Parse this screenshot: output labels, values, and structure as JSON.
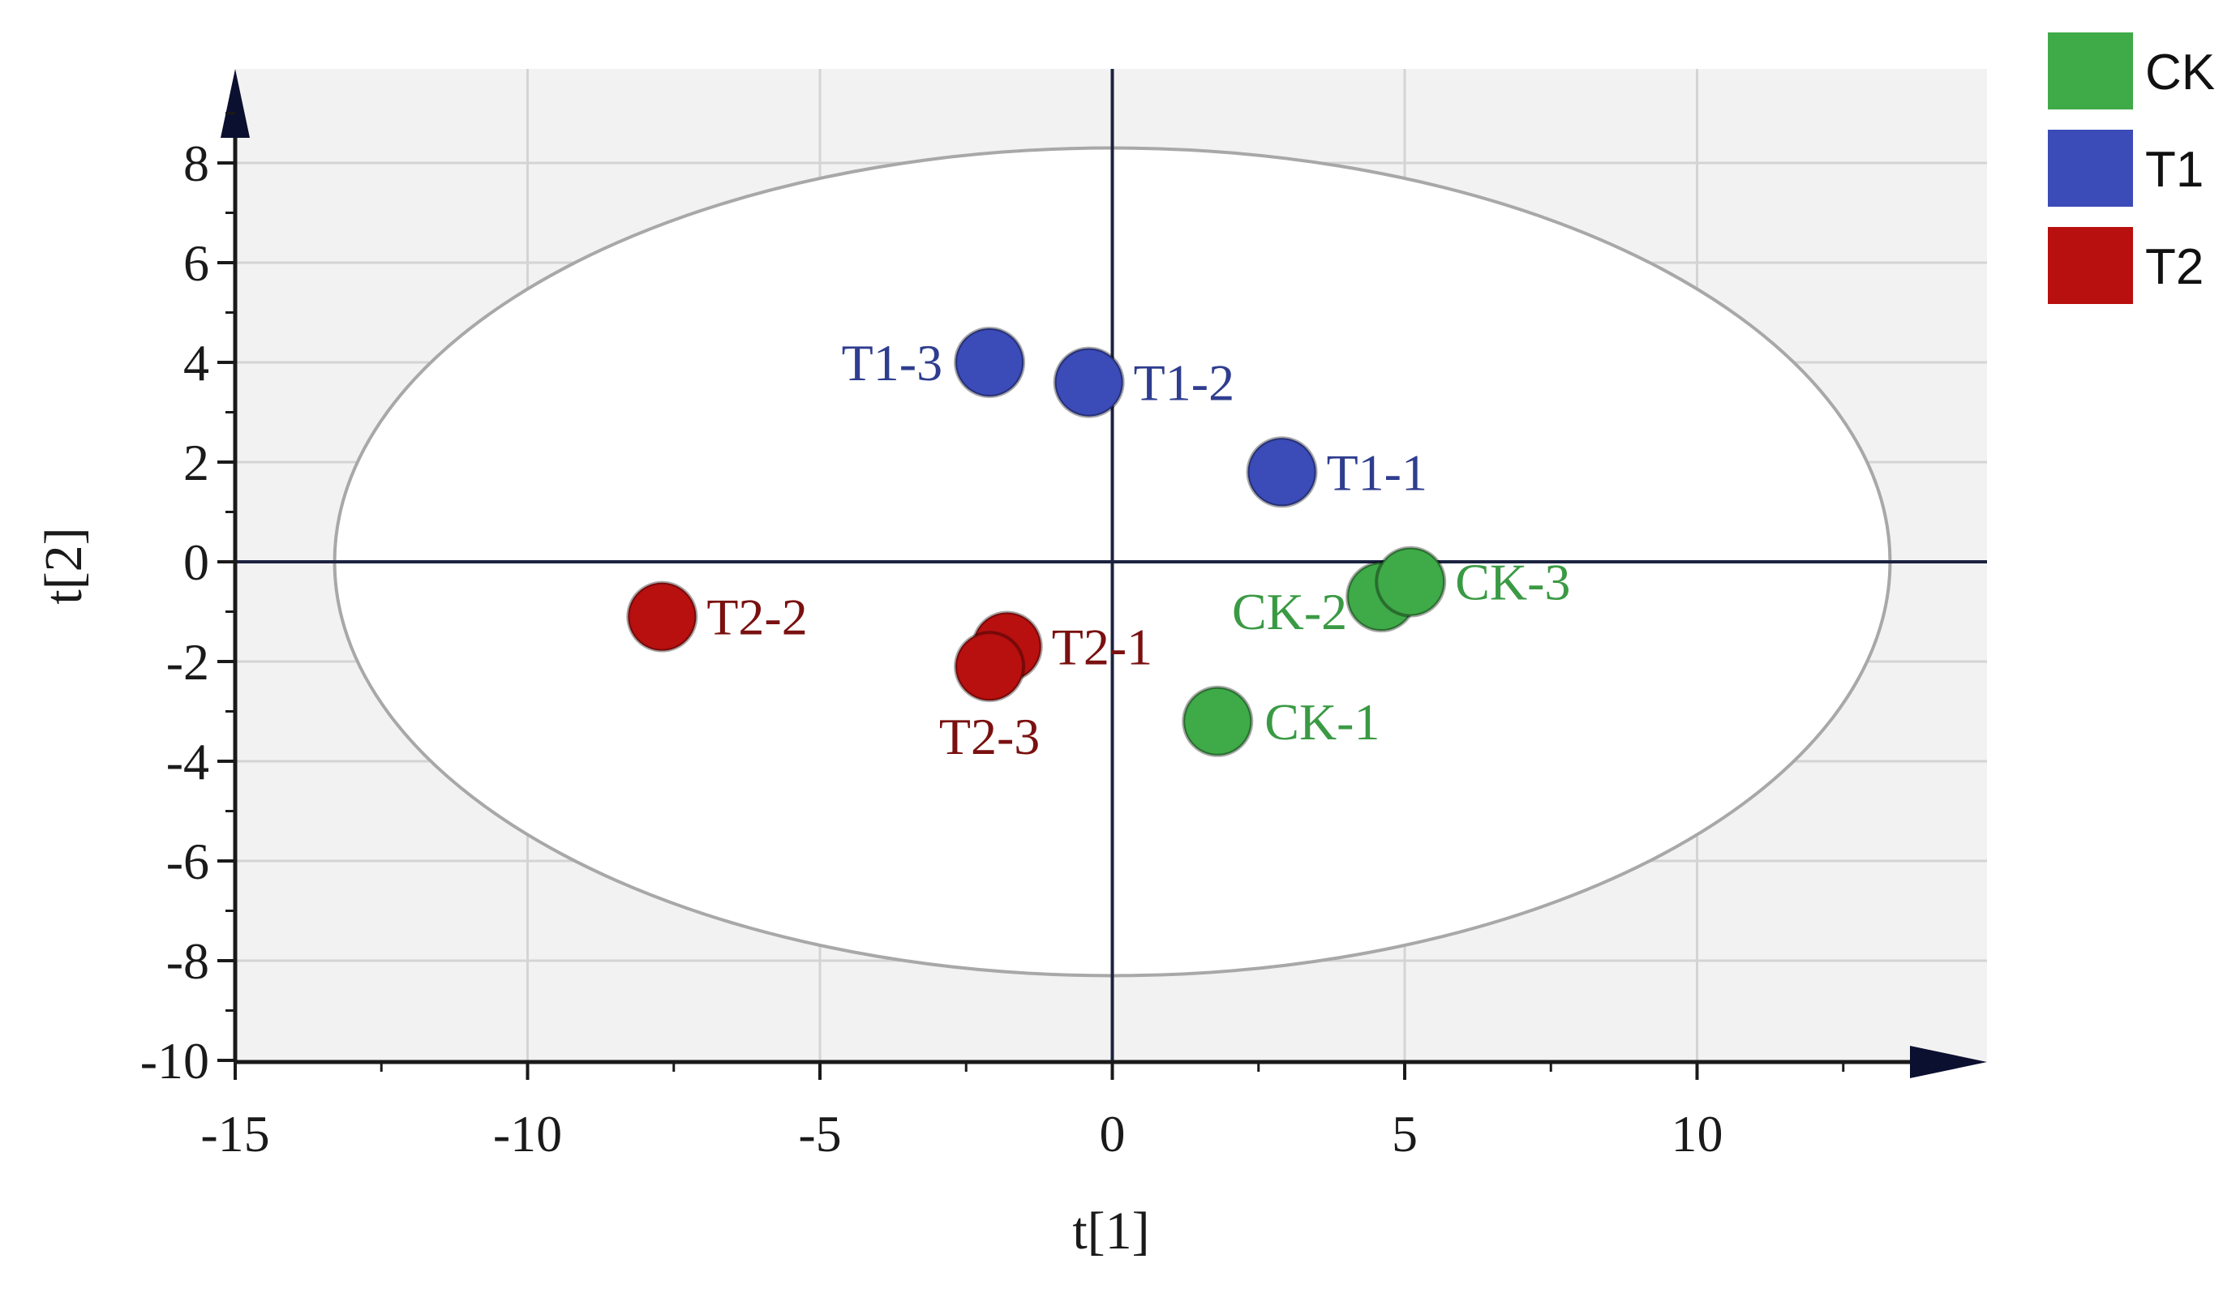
{
  "chart_data": {
    "type": "scatter",
    "xlabel": "t[1]",
    "ylabel": "t[2]",
    "xlim": [
      -15,
      15
    ],
    "ylim": [
      -10,
      10
    ],
    "x_ticks": [
      -15,
      -10,
      -5,
      0,
      5,
      10
    ],
    "y_ticks": [
      8,
      6,
      4,
      2,
      0,
      -2,
      -4,
      -6,
      -8,
      -10
    ],
    "grid": true,
    "confidence_ellipse": {
      "cx": 0,
      "cy": 0,
      "rx": 13.3,
      "ry": 8.3
    },
    "legend_position": "top-right",
    "series": [
      {
        "name": "CK",
        "color": "#3faa48",
        "label_color": "#3a9a44",
        "points": [
          {
            "label": "CK-1",
            "x": 1.8,
            "y": -3.2
          },
          {
            "label": "CK-2",
            "x": 4.6,
            "y": -0.7
          },
          {
            "label": "CK-3",
            "x": 5.1,
            "y": -0.4
          }
        ]
      },
      {
        "name": "T1",
        "color": "#3b4bb8",
        "label_color": "#2f3d8f",
        "points": [
          {
            "label": "T1-1",
            "x": 2.9,
            "y": 1.8
          },
          {
            "label": "T1-2",
            "x": -0.4,
            "y": 3.6
          },
          {
            "label": "T1-3",
            "x": -2.1,
            "y": 4.0
          }
        ]
      },
      {
        "name": "T2",
        "color": "#b80f0f",
        "label_color": "#7a1010",
        "points": [
          {
            "label": "T2-1",
            "x": -1.8,
            "y": -1.7
          },
          {
            "label": "T2-2",
            "x": -7.7,
            "y": -1.1
          },
          {
            "label": "T2-3",
            "x": -2.1,
            "y": -2.1
          }
        ]
      }
    ]
  }
}
